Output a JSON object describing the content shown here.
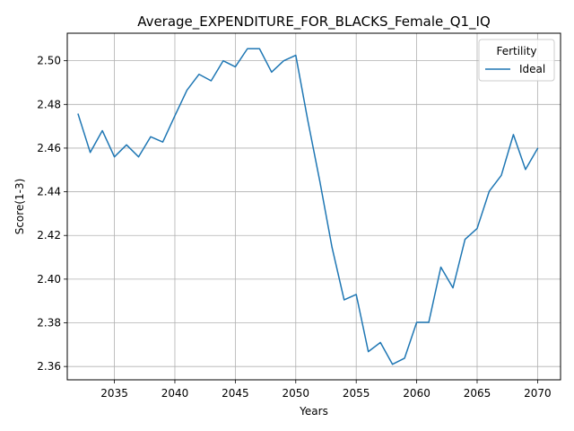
{
  "chart_data": {
    "type": "line",
    "title": "Average_EXPENDITURE_FOR_BLACKS_Female_Q1_IQ",
    "xlabel": "Years",
    "ylabel": "Score(1-3)",
    "xlim": [
      2031.1,
      2071.9
    ],
    "ylim": [
      2.3539,
      2.5126
    ],
    "x_ticks": [
      2035,
      2040,
      2045,
      2050,
      2055,
      2060,
      2065,
      2070
    ],
    "y_ticks": [
      2.36,
      2.38,
      2.4,
      2.42,
      2.44,
      2.46,
      2.48,
      2.5
    ],
    "x_tick_labels": [
      "2035",
      "2040",
      "2045",
      "2050",
      "2055",
      "2060",
      "2065",
      "2070"
    ],
    "y_tick_labels": [
      "2.36",
      "2.38",
      "2.40",
      "2.42",
      "2.44",
      "2.46",
      "2.48",
      "2.50"
    ],
    "grid": true,
    "legend": {
      "title": "Fertility",
      "placement": "top-right"
    },
    "x": [
      2032,
      2033,
      2034,
      2035,
      2036,
      2037,
      2038,
      2039,
      2040,
      2041,
      2042,
      2043,
      2044,
      2045,
      2046,
      2047,
      2048,
      2049,
      2050,
      2051,
      2052,
      2053,
      2054,
      2055,
      2056,
      2057,
      2058,
      2059,
      2060,
      2061,
      2062,
      2063,
      2064,
      2065,
      2066,
      2067,
      2068,
      2069,
      2070
    ],
    "series": [
      {
        "name": "Ideal",
        "color": "#1f77b4",
        "values": [
          2.4755,
          2.458,
          2.468,
          2.456,
          2.4615,
          2.456,
          2.4652,
          2.4628,
          2.4748,
          2.4865,
          2.4938,
          2.4908,
          2.5,
          2.4972,
          2.5055,
          2.5055,
          2.4948,
          2.5,
          2.5025,
          2.4725,
          2.4445,
          2.4145,
          2.3905,
          2.393,
          2.3668,
          2.371,
          2.361,
          2.3638,
          2.3802,
          2.3802,
          2.4055,
          2.396,
          2.4182,
          2.4232,
          2.4402,
          2.4475,
          2.4662,
          2.4502,
          2.4598
        ]
      }
    ]
  }
}
